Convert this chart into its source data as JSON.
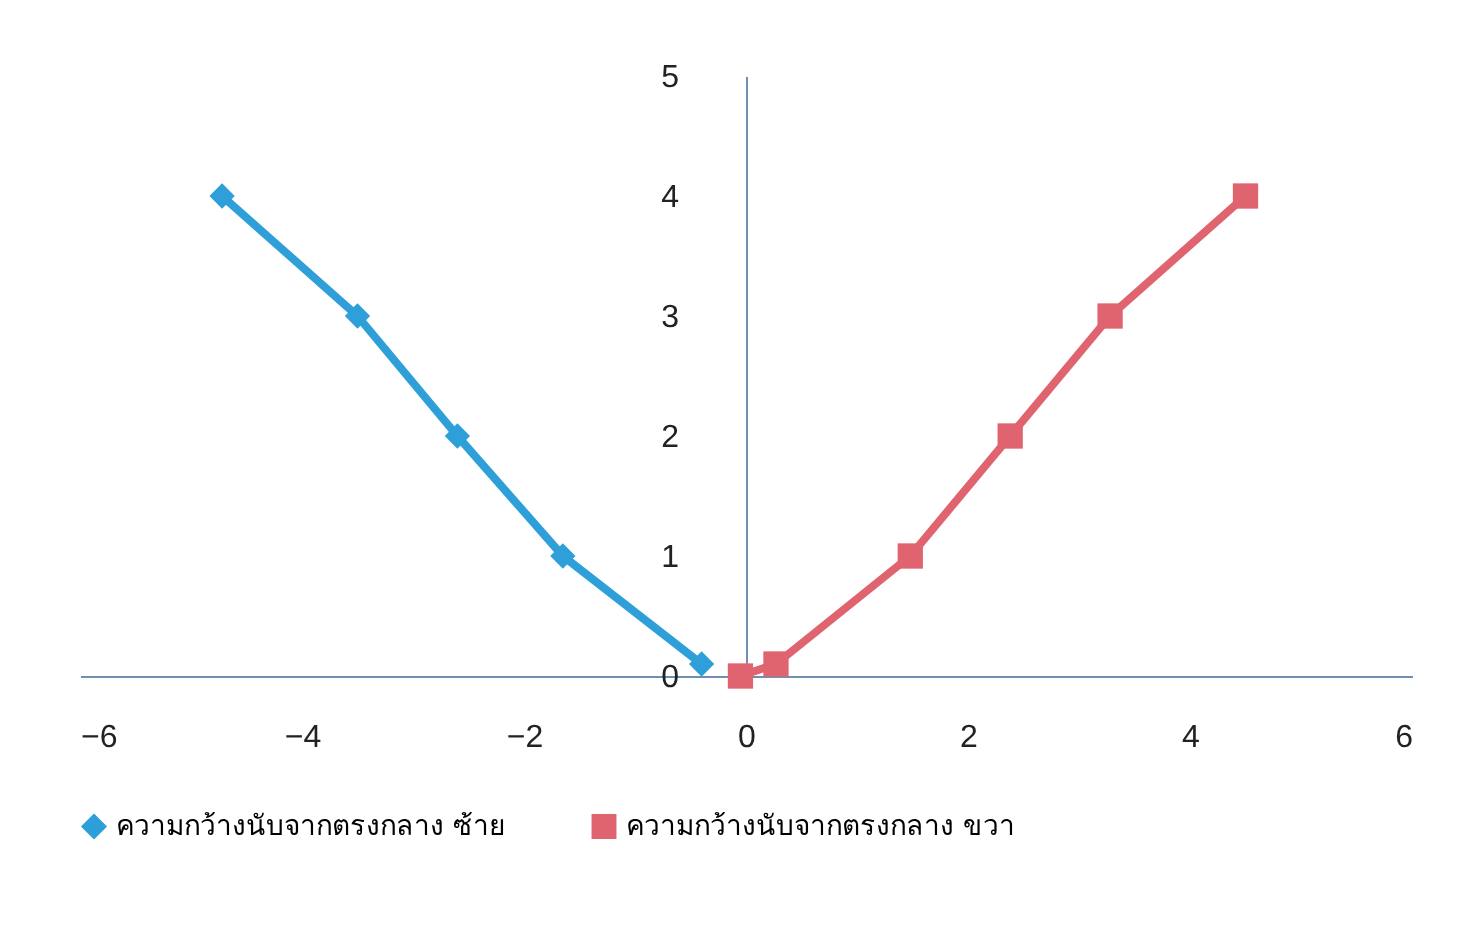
{
  "chart_data": {
    "type": "line",
    "legend": "bottom",
    "grid": false,
    "xlim": [
      -6,
      6
    ],
    "xticks": [
      -6,
      -4,
      -2,
      0,
      2,
      4,
      6
    ],
    "ylim": [
      0,
      5
    ],
    "yticks": [
      0,
      1,
      2,
      3,
      4,
      5
    ],
    "series": [
      {
        "name": "ความกว้างนับจากตรงกลาง ซ้าย",
        "color": "#2e9fd8",
        "marker": "diamond",
        "x": [
          -4.72,
          -3.5,
          -2.6,
          -1.65,
          -0.4
        ],
        "values": [
          4,
          3,
          2,
          1,
          0.1
        ]
      },
      {
        "name": "ความกว้างนับจากตรงกลาง ขวา",
        "color": "#e06470",
        "marker": "square",
        "x": [
          -0.05,
          0.27,
          1.48,
          2.38,
          3.28,
          4.5
        ],
        "values": [
          0,
          0.1,
          1,
          2,
          3,
          4
        ]
      }
    ]
  }
}
